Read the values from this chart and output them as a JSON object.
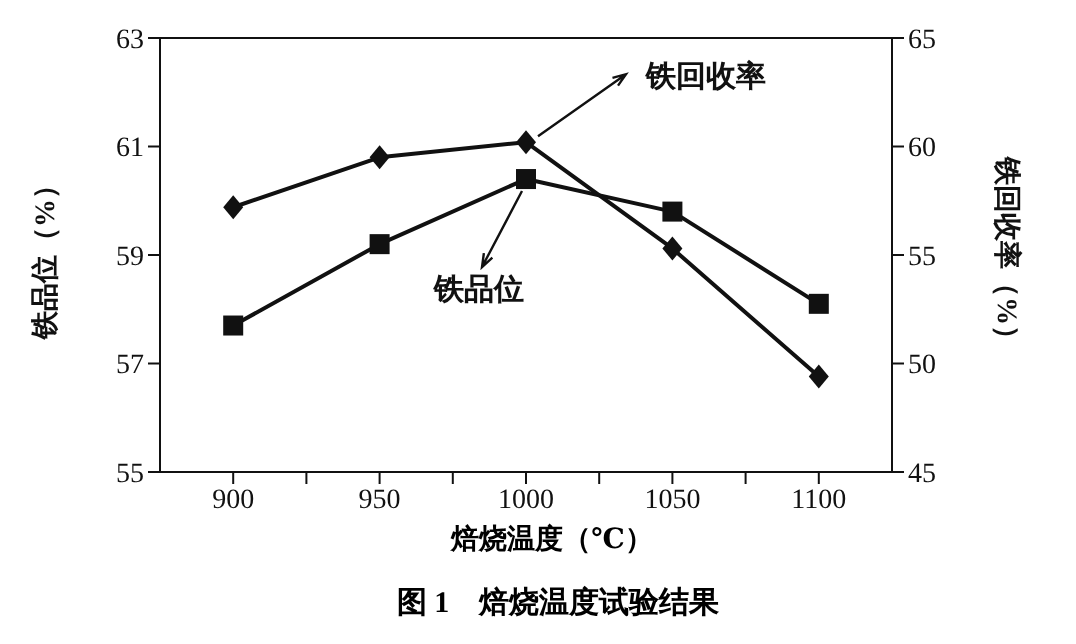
{
  "chart_data": {
    "type": "line",
    "xlabel": "焙烧温度（℃）",
    "ylabel": "铁品位（%）",
    "y2label": "铁回收率（%）",
    "x": [
      900,
      950,
      1000,
      1050,
      1100
    ],
    "xlim": [
      875,
      1125
    ],
    "xticks": [
      900,
      {
        "value": 925,
        "label": null
      },
      950,
      {
        "value": 975,
        "label": null
      },
      1000,
      {
        "value": 1025,
        "label": null
      },
      1050,
      {
        "value": 1075,
        "label": null
      },
      1100
    ],
    "ylim": [
      55,
      63
    ],
    "yticks": [
      55,
      57,
      59,
      61,
      63
    ],
    "y2lim": [
      45,
      65
    ],
    "y2ticks": [
      45,
      50,
      55,
      60,
      65
    ],
    "series": [
      {
        "name": "铁品位",
        "color": "#111111",
        "marker": "square",
        "values": [
          57.7,
          59.2,
          60.4,
          59.8,
          58.1
        ]
      },
      {
        "name": "铁回收率",
        "color": "#111111",
        "marker": "diamond",
        "axis": "y2",
        "values": [
          57.2,
          59.5,
          60.2,
          55.3,
          49.4
        ]
      }
    ],
    "line_style": "solid",
    "annotations": [
      "图 1　焙烧温度试验结果"
    ]
  }
}
